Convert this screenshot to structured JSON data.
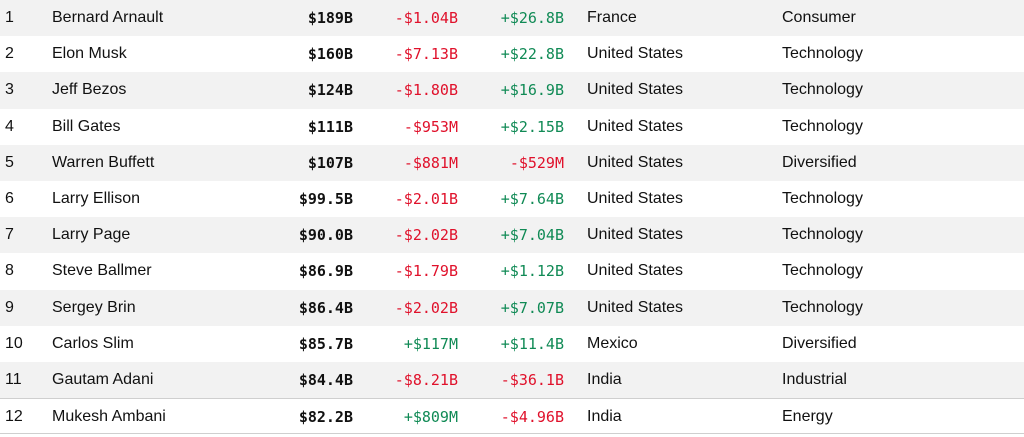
{
  "colors": {
    "negative": "#e0112b",
    "positive": "#108a55",
    "shaded_row": "#f2f2f2"
  },
  "rows": [
    {
      "rank": "1",
      "name": "Bernard Arnault",
      "worth": "$189B",
      "last_change": "-$1.04B",
      "ytd_change": "+$26.8B",
      "country": "France",
      "industry": "Consumer"
    },
    {
      "rank": "2",
      "name": "Elon Musk",
      "worth": "$160B",
      "last_change": "-$7.13B",
      "ytd_change": "+$22.8B",
      "country": "United States",
      "industry": "Technology"
    },
    {
      "rank": "3",
      "name": "Jeff Bezos",
      "worth": "$124B",
      "last_change": "-$1.80B",
      "ytd_change": "+$16.9B",
      "country": "United States",
      "industry": "Technology"
    },
    {
      "rank": "4",
      "name": "Bill Gates",
      "worth": "$111B",
      "last_change": "-$953M",
      "ytd_change": "+$2.15B",
      "country": "United States",
      "industry": "Technology"
    },
    {
      "rank": "5",
      "name": "Warren Buffett",
      "worth": "$107B",
      "last_change": "-$881M",
      "ytd_change": "-$529M",
      "country": "United States",
      "industry": "Diversified"
    },
    {
      "rank": "6",
      "name": "Larry Ellison",
      "worth": "$99.5B",
      "last_change": "-$2.01B",
      "ytd_change": "+$7.64B",
      "country": "United States",
      "industry": "Technology"
    },
    {
      "rank": "7",
      "name": "Larry Page",
      "worth": "$90.0B",
      "last_change": "-$2.02B",
      "ytd_change": "+$7.04B",
      "country": "United States",
      "industry": "Technology"
    },
    {
      "rank": "8",
      "name": "Steve Ballmer",
      "worth": "$86.9B",
      "last_change": "-$1.79B",
      "ytd_change": "+$1.12B",
      "country": "United States",
      "industry": "Technology"
    },
    {
      "rank": "9",
      "name": "Sergey Brin",
      "worth": "$86.4B",
      "last_change": "-$2.02B",
      "ytd_change": "+$7.07B",
      "country": "United States",
      "industry": "Technology"
    },
    {
      "rank": "10",
      "name": "Carlos Slim",
      "worth": "$85.7B",
      "last_change": "+$117M",
      "ytd_change": "+$11.4B",
      "country": "Mexico",
      "industry": "Diversified"
    },
    {
      "rank": "11",
      "name": "Gautam Adani",
      "worth": "$84.4B",
      "last_change": "-$8.21B",
      "ytd_change": "-$36.1B",
      "country": "India",
      "industry": "Industrial"
    },
    {
      "rank": "12",
      "name": "Mukesh Ambani",
      "worth": "$82.2B",
      "last_change": "+$809M",
      "ytd_change": "-$4.96B",
      "country": "India",
      "industry": "Energy"
    }
  ]
}
